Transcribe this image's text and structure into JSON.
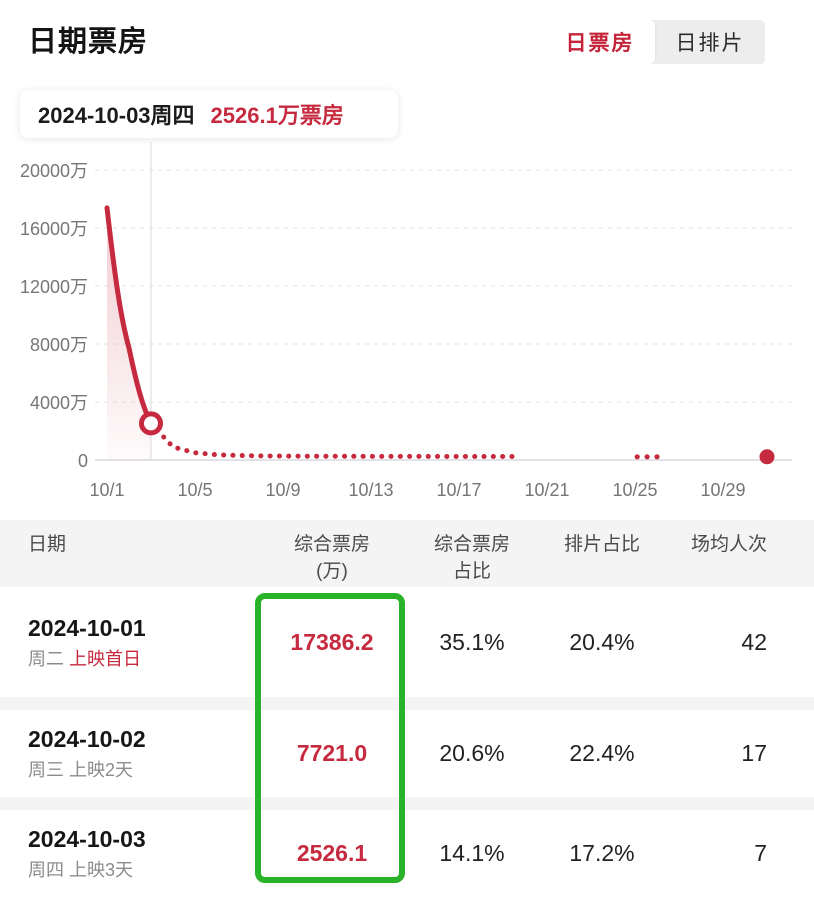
{
  "header": {
    "title": "日期票房"
  },
  "tabs": [
    {
      "label": "日票房",
      "active": true
    },
    {
      "label": "日排片",
      "active": false
    }
  ],
  "tooltip": {
    "date": "2024-10-03周四",
    "value": "2526.1万票房"
  },
  "chart_data": {
    "type": "line",
    "title": "日期票房",
    "unit": "万",
    "ylim": [
      0,
      20000
    ],
    "grid": "dashed-horizontal",
    "y_ticks": [
      {
        "value": 0,
        "label": "0"
      },
      {
        "value": 4000,
        "label": "4000万"
      },
      {
        "value": 8000,
        "label": "8000万"
      },
      {
        "value": 12000,
        "label": "12000万"
      },
      {
        "value": 16000,
        "label": "16000万"
      },
      {
        "value": 20000,
        "label": "20000万"
      }
    ],
    "x_ticks": [
      {
        "day": 1,
        "label": "10/1"
      },
      {
        "day": 5,
        "label": "10/5"
      },
      {
        "day": 9,
        "label": "10/9"
      },
      {
        "day": 13,
        "label": "10/13"
      },
      {
        "day": 17,
        "label": "10/17"
      },
      {
        "day": 21,
        "label": "10/21"
      },
      {
        "day": 25,
        "label": "10/25"
      },
      {
        "day": 29,
        "label": "10/29"
      }
    ],
    "series": [
      {
        "name": "daily-box-office-actual",
        "style": "solid",
        "points": [
          {
            "day": 1,
            "date": "2024-10-01",
            "value": 17386.2
          },
          {
            "day": 2,
            "date": "2024-10-02",
            "value": 7721.0
          },
          {
            "day": 3,
            "date": "2024-10-03",
            "value": 2526.1
          }
        ]
      },
      {
        "name": "daily-box-office-tail-dotted",
        "style": "dotted",
        "estimated": true,
        "points": [
          {
            "day": 4,
            "value": 900
          },
          {
            "day": 5,
            "value": 500
          },
          {
            "day": 6,
            "value": 360
          },
          {
            "day": 7,
            "value": 310
          },
          {
            "day": 8,
            "value": 285
          },
          {
            "day": 9,
            "value": 270
          },
          {
            "day": 10,
            "value": 262
          },
          {
            "day": 11,
            "value": 258
          },
          {
            "day": 12,
            "value": 255
          },
          {
            "day": 13,
            "value": 252
          },
          {
            "day": 14,
            "value": 250
          },
          {
            "day": 15,
            "value": 248
          },
          {
            "day": 16,
            "value": 246
          },
          {
            "day": 17,
            "value": 245
          },
          {
            "day": 18,
            "value": 244
          },
          {
            "day": 19,
            "value": 243
          },
          {
            "day": 19.6,
            "value": 242
          }
        ]
      },
      {
        "name": "isolated-dots",
        "style": "dots",
        "estimated": true,
        "points": [
          {
            "day": 25.1,
            "value": 220
          },
          {
            "day": 25.55,
            "value": 220
          },
          {
            "day": 26.0,
            "value": 220
          }
        ]
      },
      {
        "name": "end-point",
        "style": "point",
        "estimated": true,
        "points": [
          {
            "day": 31,
            "value": 220
          }
        ]
      }
    ],
    "selected_point": {
      "day": 3,
      "date": "2024-10-03",
      "value": 2526.1
    }
  },
  "table": {
    "headers": [
      {
        "lines": [
          "日期"
        ]
      },
      {
        "lines": [
          "综合票房",
          "(万)"
        ]
      },
      {
        "lines": [
          "综合票房",
          "占比"
        ]
      },
      {
        "lines": [
          "排片占比"
        ]
      },
      {
        "lines": [
          "场均人次"
        ]
      }
    ],
    "rows": [
      {
        "date": "2024-10-01",
        "week": "周二",
        "note": "上映首日",
        "note_highlight": true,
        "box_office": "17386.2",
        "box_office_share": "35.1%",
        "screening_share": "20.4%",
        "avg_attendance": "42"
      },
      {
        "date": "2024-10-02",
        "week": "周三",
        "note": "上映2天",
        "note_highlight": false,
        "box_office": "7721.0",
        "box_office_share": "20.6%",
        "screening_share": "22.4%",
        "avg_attendance": "17"
      },
      {
        "date": "2024-10-03",
        "week": "周四",
        "note": "上映3天",
        "note_highlight": false,
        "box_office": "2526.1",
        "box_office_share": "14.1%",
        "screening_share": "17.2%",
        "avg_attendance": "7"
      }
    ]
  },
  "colors": {
    "accent_red": "#c62a3f",
    "highlight_green": "#29b329",
    "grid_gray": "#e3e3e6",
    "axis_gray": "#d9d9dd",
    "tick_text": "#76767a"
  }
}
